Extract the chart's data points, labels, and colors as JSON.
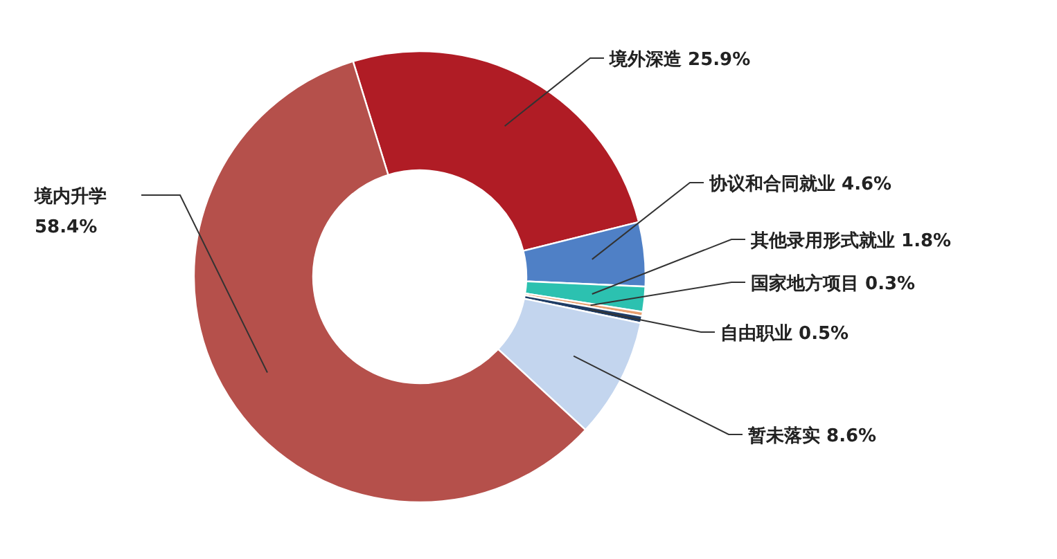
{
  "chart_data": {
    "type": "donut",
    "categories": [
      "境外深造",
      "协议和合同就业",
      "其他录用形式就业",
      "国家地方项目",
      "自由职业",
      "暂未落实",
      "境内升学"
    ],
    "values": [
      25.9,
      4.6,
      1.8,
      0.3,
      0.5,
      8.6,
      58.4
    ],
    "value_labels": [
      "25.9%",
      "4.6%",
      "1.8%",
      "0.3%",
      "0.5%",
      "8.6%",
      "58.4%"
    ],
    "colors": [
      "#b01c25",
      "#4f80c6",
      "#2cc1b0",
      "#e8a070",
      "#1f3d66",
      "#c3d5ee",
      "#b5504b"
    ]
  }
}
